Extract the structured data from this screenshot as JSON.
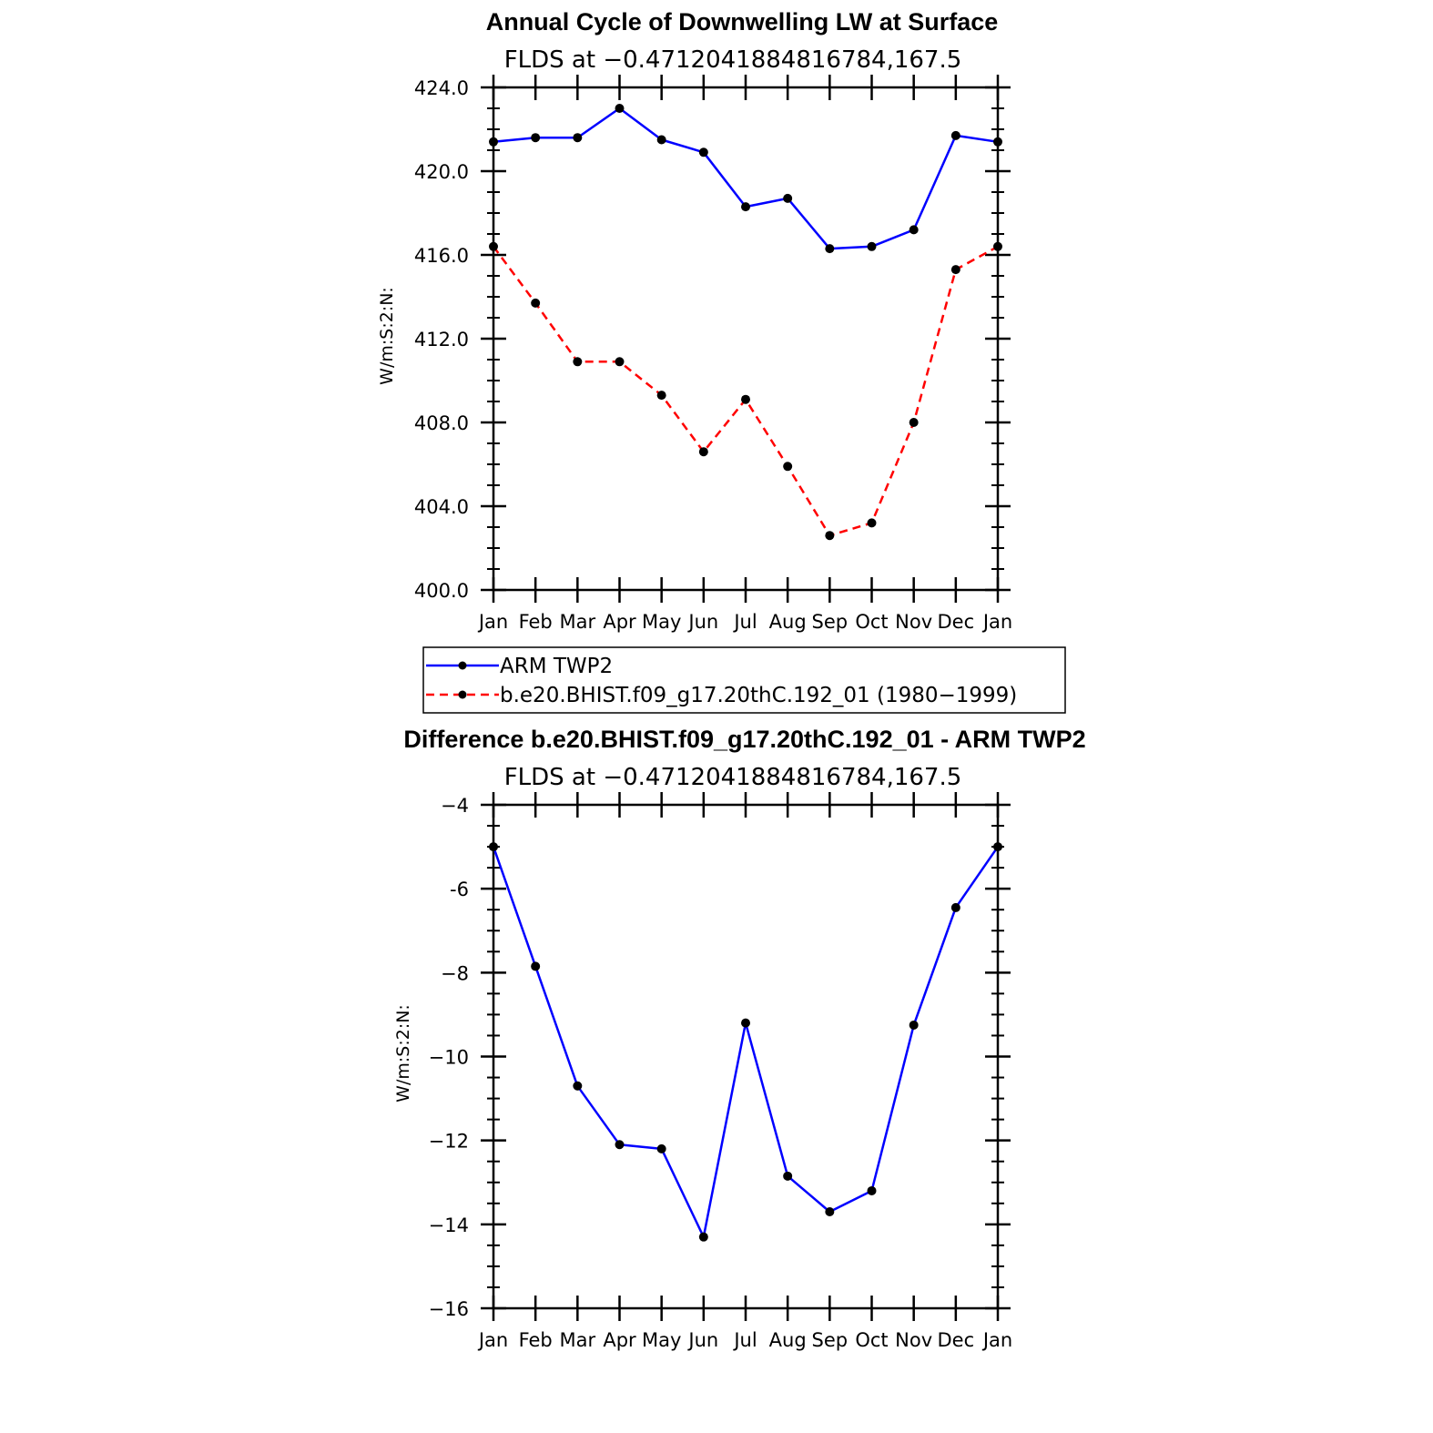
{
  "chart_data": [
    {
      "type": "line",
      "title": "Annual Cycle of Downwelling LW at Surface",
      "subtitle": "FLDS at −0.4712041884816784,167.5",
      "ylabel": "W/m:S:2:N:",
      "xlabel": "",
      "ylim": [
        400,
        424
      ],
      "yticks": [
        "400.0",
        "404.0",
        "408.0",
        "412.0",
        "416.0",
        "420.0",
        "424.0"
      ],
      "categories": [
        "Jan",
        "Feb",
        "Mar",
        "Apr",
        "May",
        "Jun",
        "Jul",
        "Aug",
        "Sep",
        "Oct",
        "Nov",
        "Dec",
        "Jan"
      ],
      "series": [
        {
          "name": "ARM TWP2",
          "color": "#0000ff",
          "dash": "solid",
          "values": [
            421.4,
            421.6,
            421.6,
            423.0,
            421.5,
            420.9,
            418.3,
            418.7,
            416.3,
            416.4,
            417.2,
            421.7,
            421.4
          ]
        },
        {
          "name": "b.e20.BHIST.f09_g17.20thC.192_01 (1980−1999)",
          "color": "#ff0000",
          "dash": "dashed",
          "values": [
            416.4,
            413.7,
            410.9,
            410.9,
            409.3,
            406.6,
            409.1,
            405.9,
            402.6,
            403.2,
            408.0,
            415.3,
            416.4
          ]
        }
      ],
      "legend": [
        "ARM TWP2",
        "b.e20.BHIST.f09_g17.20thC.192_01 (1980−1999)"
      ]
    },
    {
      "type": "line",
      "title": "Difference b.e20.BHIST.f09_g17.20thC.192_01 - ARM TWP2",
      "subtitle": "FLDS at −0.4712041884816784,167.5",
      "ylabel": "W/m:S:2:N:",
      "xlabel": "",
      "ylim": [
        -16,
        -4
      ],
      "yticks": [
        "−16",
        "−14",
        "−12",
        "−10",
        "−8",
        "-6",
        "−4"
      ],
      "categories": [
        "Jan",
        "Feb",
        "Mar",
        "Apr",
        "May",
        "Jun",
        "Jul",
        "Aug",
        "Sep",
        "Oct",
        "Nov",
        "Dec",
        "Jan"
      ],
      "series": [
        {
          "name": "Difference",
          "color": "#0000ff",
          "dash": "solid",
          "values": [
            -5.0,
            -7.85,
            -10.7,
            -12.1,
            -12.2,
            -14.3,
            -9.2,
            -12.85,
            -13.7,
            -13.2,
            -9.25,
            -6.45,
            -5.0
          ]
        }
      ]
    }
  ]
}
